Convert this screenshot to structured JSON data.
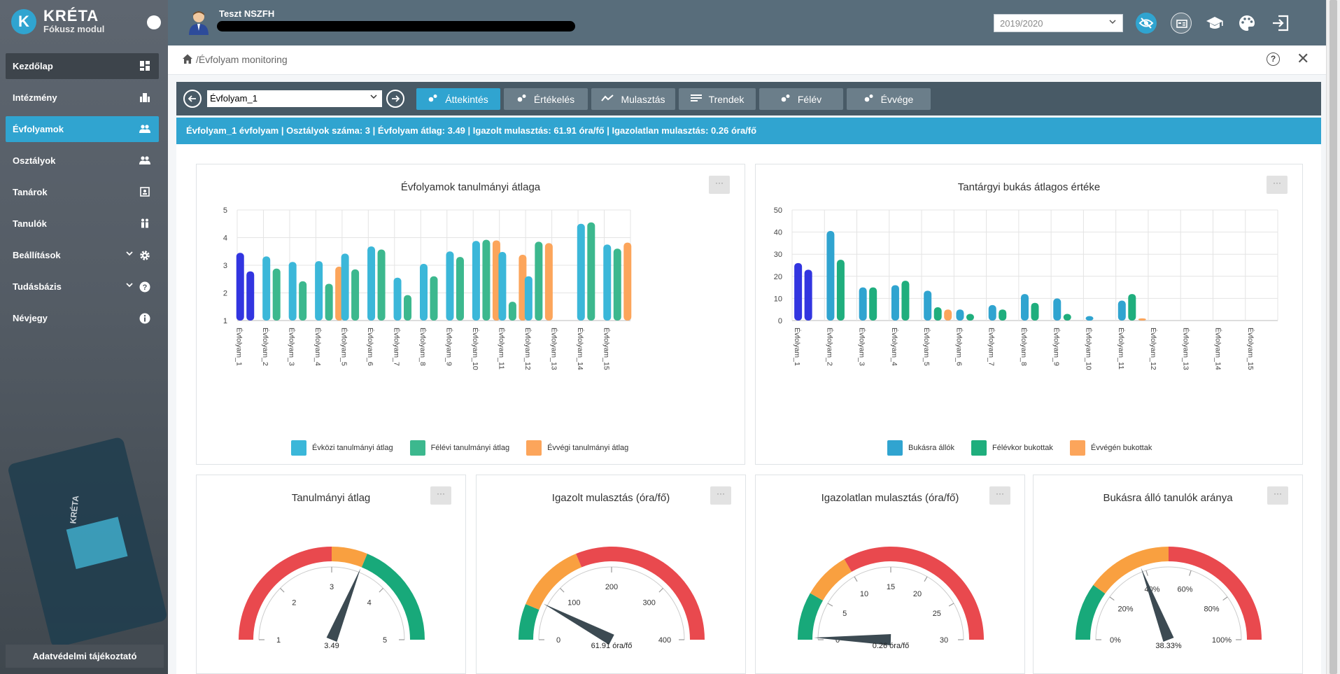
{
  "app": {
    "name": "KRÉTA",
    "module": "Fókusz modul",
    "logo_letter": "K"
  },
  "sidebar": {
    "items": [
      {
        "label": "Kezdőlap",
        "icon": "grid-icon"
      },
      {
        "label": "Intézmény",
        "icon": "building-icon"
      },
      {
        "label": "Évfolyamok",
        "icon": "users-icon"
      },
      {
        "label": "Osztályok",
        "icon": "users-icon"
      },
      {
        "label": "Tanárok",
        "icon": "id-card-icon"
      },
      {
        "label": "Tanulók",
        "icon": "students-icon"
      },
      {
        "label": "Beállítások",
        "icon": "gear-icon"
      },
      {
        "label": "Tudásbázis",
        "icon": "question-icon"
      },
      {
        "label": "Névjegy",
        "icon": "info-icon"
      }
    ],
    "tablet_label": "KRÉTA",
    "privacy_label": "Adatvédelmi tájékoztató"
  },
  "header": {
    "user_name": "Teszt NSZFH",
    "school_year": "2019/2020"
  },
  "breadcrumb": {
    "path": "/Évfolyam monitoring",
    "help": "?",
    "close": "✕"
  },
  "toolbar": {
    "grade_value": "Évfolyam_1",
    "tabs": [
      {
        "label": "Áttekintés",
        "active": true
      },
      {
        "label": "Értékelés",
        "active": false
      },
      {
        "label": "Mulasztás",
        "active": false
      },
      {
        "label": "Trendek",
        "active": false
      },
      {
        "label": "Félév",
        "active": false
      },
      {
        "label": "Évvége",
        "active": false
      }
    ]
  },
  "infobar": {
    "text": "Évfolyam_1 évfolyam | Osztályok száma: 3 | Évfolyam átlag: 3.49 | Igazolt mulasztás: 61.91 óra/fő | Igazolatlan mulasztás: 0.26 óra/fő"
  },
  "colors": {
    "accent": "#30a4d0",
    "series_blue": "#3bb7d9",
    "series_green": "#3cb88e",
    "series_orange": "#fca55b",
    "highlight": "#3235e0",
    "gauge_red": "#e9494e",
    "gauge_orange": "#f9a040",
    "gauge_green": "#18a97a"
  },
  "chart_data": [
    {
      "type": "bar",
      "title": "Évfolyamok tanulmányi átlaga",
      "categories": [
        "Évfolyam_1",
        "Évfolyam_2",
        "Évfolyam_3",
        "Évfolyam_4",
        "Évfolyam_5",
        "Évfolyam_6",
        "Évfolyam_7",
        "Évfolyam_8",
        "Évfolyam_9",
        "Évfolyam_10",
        "Évfolyam_11",
        "Évfolyam_12",
        "Évfolyam_13",
        "Évfolyam_14",
        "Évfolyam_15"
      ],
      "ylim": [
        1,
        5
      ],
      "yticks": [
        "1",
        "2",
        "3",
        "4",
        "5"
      ],
      "highlighted_category": "Évfolyam_1",
      "series": [
        {
          "name": "Évközi tanulmányi átlag",
          "values": [
            3.45,
            3.32,
            3.12,
            3.15,
            3.42,
            3.68,
            2.55,
            3.05,
            3.5,
            3.88,
            3.48,
            2.6,
            null,
            4.5,
            3.75
          ]
        },
        {
          "name": "Félévi tanulmányi átlag",
          "values": [
            2.78,
            2.88,
            2.42,
            2.33,
            2.85,
            3.57,
            1.92,
            2.6,
            3.3,
            3.92,
            1.68,
            3.85,
            null,
            4.55,
            3.6
          ]
        },
        {
          "name": "Évvégi tanulmányi átlag",
          "values": [
            null,
            null,
            null,
            2.95,
            null,
            null,
            null,
            null,
            null,
            3.9,
            3.38,
            3.8,
            null,
            null,
            3.82
          ]
        }
      ],
      "menu": "···"
    },
    {
      "type": "bar",
      "title": "Tantárgyi bukás átlagos értéke",
      "categories": [
        "Évfolyam_1",
        "Évfolyam_2",
        "Évfolyam_3",
        "Évfolyam_4",
        "Évfolyam_5",
        "Évfolyam_6",
        "Évfolyam_7",
        "Évfolyam_8",
        "Évfolyam_9",
        "Évfolyam_10",
        "Évfolyam_11",
        "Évfolyam_12",
        "Évfolyam_13",
        "Évfolyam_14",
        "Évfolyam_15"
      ],
      "ylim": [
        0,
        50
      ],
      "yticks": [
        "0",
        "10",
        "20",
        "30",
        "40",
        "50"
      ],
      "highlighted_category": "Évfolyam_1",
      "series": [
        {
          "name": "Bukásra állók",
          "values": [
            26,
            40.5,
            15,
            16,
            13.5,
            5,
            7,
            12,
            10,
            2,
            9,
            null,
            null,
            null,
            null
          ]
        },
        {
          "name": "Félévkor bukottak",
          "values": [
            23,
            27.5,
            15,
            18,
            6,
            3,
            5,
            8,
            3,
            null,
            12,
            null,
            null,
            null,
            null
          ]
        },
        {
          "name": "Évvégén bukottak",
          "values": [
            null,
            null,
            null,
            null,
            5,
            null,
            null,
            null,
            null,
            null,
            1,
            null,
            null,
            null,
            null
          ]
        }
      ],
      "menu": "···"
    },
    {
      "type": "gauge",
      "title": "Tanulmányi átlag",
      "min": 1,
      "max": 5,
      "ticks": [
        "1",
        "2",
        "3",
        "4",
        "5"
      ],
      "value": 3.49,
      "value_label": "3.49",
      "bands": [
        {
          "from": 1,
          "to": 3,
          "color": "red"
        },
        {
          "from": 3,
          "to": 3.5,
          "color": "orange"
        },
        {
          "from": 3.5,
          "to": 5,
          "color": "green"
        }
      ],
      "menu": "···"
    },
    {
      "type": "gauge",
      "title": "Igazolt mulasztás (óra/fő)",
      "min": 0,
      "max": 400,
      "ticks": [
        "0",
        "100",
        "200",
        "300",
        "400"
      ],
      "value": 61.91,
      "value_label": "61.91 óra/fő",
      "bands": [
        {
          "from": 0,
          "to": 50,
          "color": "green"
        },
        {
          "from": 50,
          "to": 150,
          "color": "orange"
        },
        {
          "from": 150,
          "to": 400,
          "color": "red"
        }
      ],
      "menu": "···"
    },
    {
      "type": "gauge",
      "title": "Igazolatlan mulasztás (óra/fő)",
      "min": 0,
      "max": 30,
      "ticks": [
        "0",
        "5",
        "10",
        "15",
        "20",
        "25",
        "30"
      ],
      "value": 0.26,
      "value_label": "0.26 óra/fő",
      "bands": [
        {
          "from": 0,
          "to": 5,
          "color": "green"
        },
        {
          "from": 5,
          "to": 10,
          "color": "orange"
        },
        {
          "from": 10,
          "to": 30,
          "color": "red"
        }
      ],
      "menu": "···"
    },
    {
      "type": "gauge",
      "title": "Bukásra álló tanulók aránya",
      "min": 0,
      "max": 100,
      "ticks": [
        "0%",
        "20%",
        "40%",
        "60%",
        "80%",
        "100%"
      ],
      "value": 38.33,
      "value_label": "38.33%",
      "bands": [
        {
          "from": 0,
          "to": 20,
          "color": "green"
        },
        {
          "from": 20,
          "to": 50,
          "color": "orange"
        },
        {
          "from": 50,
          "to": 100,
          "color": "red"
        }
      ],
      "menu": "···"
    }
  ]
}
